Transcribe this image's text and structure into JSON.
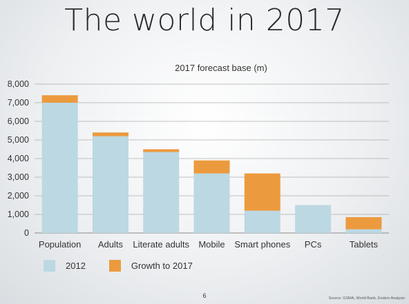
{
  "slide": {
    "title": "The world in 2017",
    "page_number": "6",
    "source": "Source: GSMA, World Bank, Enders Analysis"
  },
  "colors": {
    "base": "#bcd8e3",
    "growth": "#ec9a3e",
    "grid": "#8a8a8a"
  },
  "chart_data": {
    "type": "bar",
    "stacked": true,
    "title": "2017 forecast base (m)",
    "categories": [
      "Population",
      "Adults",
      "Literate adults",
      "Mobile",
      "Smart phones",
      "PCs",
      "Tablets"
    ],
    "series": [
      {
        "name": "2012",
        "values": [
          7000,
          5200,
          4350,
          3200,
          1200,
          1500,
          200
        ]
      },
      {
        "name": "Growth to 2017",
        "values": [
          400,
          200,
          150,
          700,
          2000,
          0,
          650
        ]
      }
    ],
    "ylim": [
      0,
      8000
    ],
    "yticks": [
      "0",
      "1,000",
      "2,000",
      "3,000",
      "4,000",
      "5,000",
      "6,000",
      "7,000",
      "8,000"
    ],
    "grid": true,
    "legend": "bottom-left"
  }
}
